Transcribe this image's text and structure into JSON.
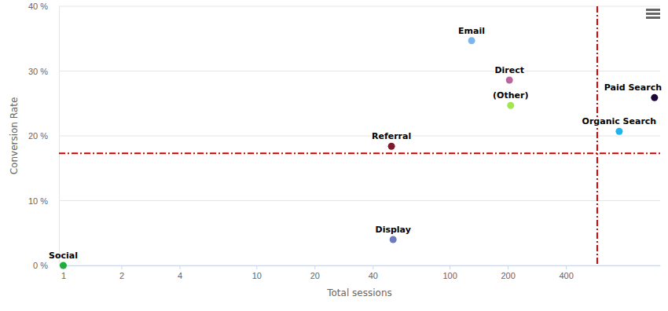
{
  "chart_data": {
    "type": "scatter",
    "x_label": "Total sessions",
    "y_label": "Conversion Rate",
    "labels": [
      "Social",
      "Display",
      "Referral",
      "Email",
      "Direct",
      "(Other)",
      "Organic Search",
      "Paid Search"
    ],
    "x": [
      1,
      51,
      50,
      130,
      204,
      207,
      755,
      1150
    ],
    "values": [
      0,
      4.0,
      18.4,
      34.7,
      28.6,
      24.7,
      20.7,
      25.9
    ],
    "colors": [
      "#1fae3d",
      "#6b7bbd",
      "#7d1a2c",
      "#7cb5ec",
      "#b9689e",
      "#a3e64f",
      "#1eb4ee",
      "#1b0436"
    ],
    "marker": "circle",
    "log": "x",
    "grid": "y",
    "xlim": [
      0.95,
      1230
    ],
    "xticks": [
      1,
      2,
      4,
      10,
      20,
      40,
      100,
      200,
      400
    ],
    "ylim": [
      0,
      40
    ],
    "yticks": [
      {
        "value": 0,
        "label": "0 %"
      },
      {
        "value": 10,
        "label": "10 %"
      },
      {
        "value": 20,
        "label": "20 %"
      },
      {
        "value": 30,
        "label": "30 %"
      },
      {
        "value": 40,
        "label": "40 %"
      }
    ],
    "reference_lines": [
      {
        "axis": "x",
        "value": 581,
        "color": "#d40000",
        "line_style": "dashdot"
      },
      {
        "axis": "y",
        "value": 17.3,
        "color": "#d40000",
        "line_style": "dashdot"
      }
    ]
  }
}
